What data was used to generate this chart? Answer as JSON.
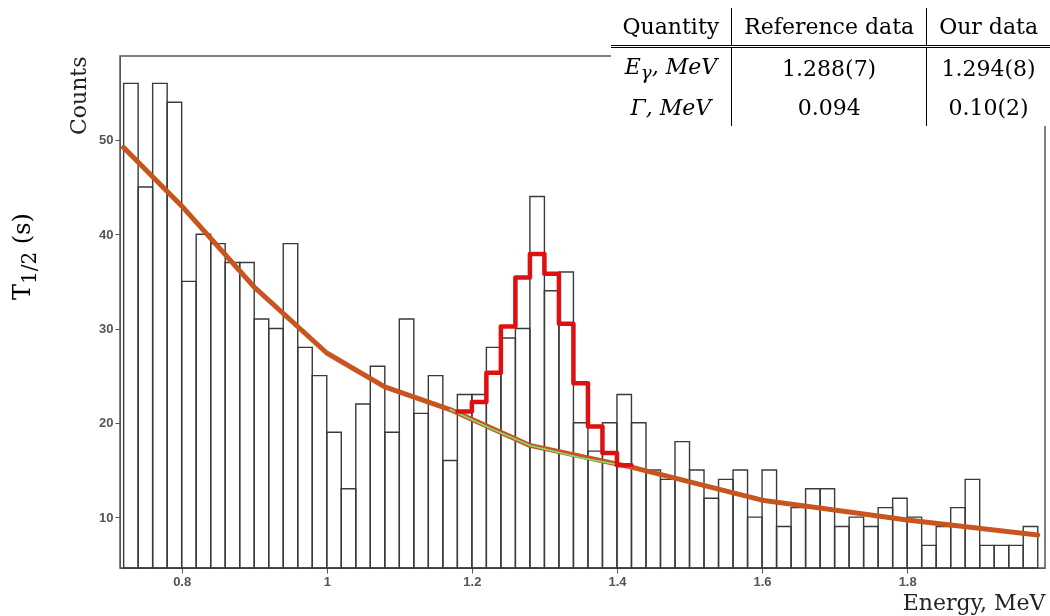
{
  "chart_data": {
    "type": "histogram",
    "xlabel": "Energy, MeV",
    "ylabel": "Counts",
    "bins": [
      0.72,
      0.74,
      0.76,
      0.78,
      0.8,
      0.82,
      0.84,
      0.86,
      0.88,
      0.9,
      0.92,
      0.94,
      0.96,
      0.98,
      1.0,
      1.02,
      1.04,
      1.06,
      1.08,
      1.1,
      1.12,
      1.14,
      1.16,
      1.18,
      1.2,
      1.22,
      1.24,
      1.26,
      1.28,
      1.3,
      1.32,
      1.34,
      1.36,
      1.38,
      1.4,
      1.42,
      1.44,
      1.46,
      1.48,
      1.5,
      1.52,
      1.54,
      1.56,
      1.58,
      1.6,
      1.62,
      1.64,
      1.66,
      1.68,
      1.7,
      1.72,
      1.74,
      1.76,
      1.78,
      1.8,
      1.82,
      1.84,
      1.86,
      1.88,
      1.9,
      1.92,
      1.94,
      1.96,
      1.98
    ],
    "values": [
      56,
      45,
      56,
      54,
      35,
      40,
      39,
      37,
      37,
      31,
      30,
      39,
      28,
      25,
      19,
      13,
      22,
      26,
      19,
      31,
      21,
      25,
      16,
      23,
      23,
      28,
      29,
      30,
      44,
      34,
      36,
      20,
      17,
      20,
      23,
      20,
      15,
      14,
      18,
      15,
      12,
      14,
      15,
      10,
      15,
      9,
      11,
      13,
      13,
      9,
      10,
      9,
      11,
      12,
      10,
      7,
      9,
      11,
      14,
      7,
      7,
      7,
      9
    ],
    "color": "#3a3a3a",
    "series": [
      {
        "type": "line",
        "color": "#c8541e",
        "x": [
          0.72,
          0.8,
          0.9,
          1.0,
          1.08,
          1.17,
          1.28,
          1.42,
          1.6,
          1.8,
          1.98
        ],
        "values": [
          49.2,
          43,
          34.4,
          27.4,
          23.8,
          21.4,
          17.6,
          15.3,
          11.8,
          9.7,
          8.1
        ]
      },
      {
        "type": "line",
        "color": "#7ee07e",
        "x": [
          1.17,
          1.22,
          1.28,
          1.35,
          1.42
        ],
        "values": [
          21.4,
          19.6,
          17.6,
          16.3,
          15.3
        ]
      },
      {
        "type": "step",
        "color": "#dd1111",
        "x": [
          1.18,
          1.2,
          1.22,
          1.24,
          1.26,
          1.28,
          1.3,
          1.32,
          1.34,
          1.36,
          1.38,
          1.4,
          1.42
        ],
        "values": [
          21.2,
          22.2,
          25.3,
          30.2,
          35.4,
          37.9,
          35.8,
          30.5,
          24.2,
          19.6,
          16.8,
          15.5,
          15.5
        ]
      }
    ],
    "xlim": [
      0.715,
      1.99
    ],
    "ylim": [
      4.6,
      58.9
    ],
    "xticks": [
      0.8,
      1,
      1.2,
      1.4,
      1.6,
      1.8
    ],
    "yticks": [
      10,
      20,
      30,
      40,
      50
    ],
    "grid": false,
    "annotations": [
      "Quantity",
      "Reference data",
      "Our data",
      "E$_{γ}$, MeV",
      "1.288(7)",
      "1.294(8)",
      "Γ, MeV",
      "0.094",
      "0.10(2)",
      "T$_{1/2}$  (s)"
    ]
  }
}
